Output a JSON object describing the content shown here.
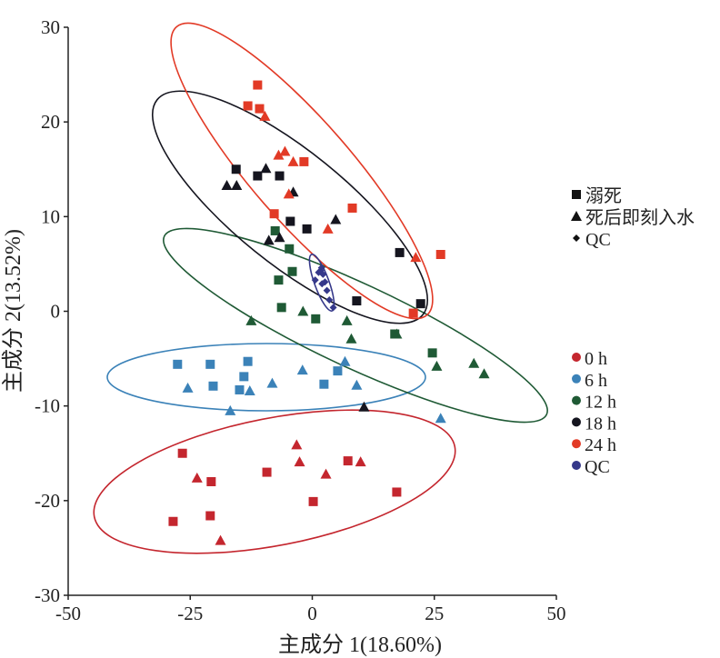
{
  "chart_data": {
    "type": "scatter",
    "title": "",
    "xlabel": "主成分 1(18.60%)",
    "ylabel": "主成分 2(13.52%)",
    "xlim": [
      -50,
      50
    ],
    "ylim": [
      -30,
      30
    ],
    "xticks": [
      "-50",
      "-25",
      "0",
      "25",
      "50"
    ],
    "yticks": [
      "30",
      "20",
      "10",
      "0",
      "-10",
      "-20",
      "-30"
    ],
    "grid": false,
    "shape_legend": [
      {
        "label": "溺死",
        "marker": "square"
      },
      {
        "label": "死后即刻入水",
        "marker": "triangle"
      },
      {
        "label": "QC",
        "marker": "diamond"
      }
    ],
    "color_legend": [
      {
        "label": "0 h",
        "color": "#c4262e"
      },
      {
        "label": "6 h",
        "color": "#3b82b8"
      },
      {
        "label": "12 h",
        "color": "#1f5a35"
      },
      {
        "label": "18 h",
        "color": "#15151f"
      },
      {
        "label": "24 h",
        "color": "#e23a26"
      },
      {
        "label": "QC",
        "color": "#35388a"
      }
    ],
    "series": [
      {
        "name": "0 h",
        "color": "#c4262e",
        "square": [
          [
            -26.6,
            -15.0
          ],
          [
            -20.7,
            -18.0
          ],
          [
            -20.9,
            -21.6
          ],
          [
            -28.5,
            -22.2
          ],
          [
            -9.3,
            -17.0
          ],
          [
            0.2,
            -20.1
          ],
          [
            7.3,
            -15.8
          ],
          [
            17.3,
            -19.1
          ]
        ],
        "triangle": [
          [
            -23.6,
            -17.6
          ],
          [
            -18.8,
            -24.2
          ],
          [
            -3.2,
            -14.1
          ],
          [
            -2.6,
            -15.9
          ],
          [
            2.8,
            -17.2
          ],
          [
            9.9,
            -15.9
          ]
        ]
      },
      {
        "name": "6 h",
        "color": "#3b82b8",
        "square": [
          [
            -27.6,
            -5.6
          ],
          [
            -20.9,
            -5.6
          ],
          [
            -20.3,
            -7.9
          ],
          [
            -13.2,
            -5.3
          ],
          [
            -14.0,
            -6.9
          ],
          [
            -14.9,
            -8.3
          ],
          [
            2.4,
            -7.7
          ],
          [
            5.2,
            -6.3
          ]
        ],
        "triangle": [
          [
            -25.5,
            -8.1
          ],
          [
            -12.8,
            -8.4
          ],
          [
            -16.8,
            -10.5
          ],
          [
            -8.2,
            -7.6
          ],
          [
            -2.0,
            -6.2
          ],
          [
            6.7,
            -5.3
          ],
          [
            9.1,
            -7.8
          ],
          [
            26.3,
            -11.3
          ]
        ]
      },
      {
        "name": "12 h",
        "color": "#1f5a35",
        "square": [
          [
            -7.6,
            8.5
          ],
          [
            -4.7,
            6.6
          ],
          [
            -4.1,
            4.2
          ],
          [
            -6.9,
            3.3
          ],
          [
            -6.3,
            0.4
          ],
          [
            0.7,
            -0.8
          ],
          [
            16.9,
            -2.4
          ],
          [
            24.6,
            -4.4
          ]
        ],
        "triangle": [
          [
            -12.5,
            -1.0
          ],
          [
            -1.9,
            0.0
          ],
          [
            7.1,
            -1.0
          ],
          [
            8.0,
            -2.9
          ],
          [
            17.3,
            -2.4
          ],
          [
            25.5,
            -5.8
          ],
          [
            33.1,
            -5.5
          ],
          [
            35.2,
            -6.6
          ]
        ]
      },
      {
        "name": "18 h",
        "color": "#15151f",
        "square": [
          [
            -15.6,
            15.0
          ],
          [
            -11.2,
            14.3
          ],
          [
            -6.7,
            14.3
          ],
          [
            -4.5,
            9.5
          ],
          [
            -1.1,
            8.7
          ],
          [
            17.9,
            6.2
          ],
          [
            9.1,
            1.1
          ],
          [
            22.2,
            0.8
          ]
        ],
        "triangle": [
          [
            -17.5,
            13.3
          ],
          [
            -15.5,
            13.3
          ],
          [
            -9.5,
            15.1
          ],
          [
            -3.9,
            12.6
          ],
          [
            4.8,
            9.7
          ],
          [
            -8.9,
            7.5
          ],
          [
            -6.7,
            7.8
          ],
          [
            10.6,
            -10.1
          ]
        ]
      },
      {
        "name": "24 h",
        "color": "#e23a26",
        "square": [
          [
            -11.2,
            23.9
          ],
          [
            -13.2,
            21.7
          ],
          [
            -10.8,
            21.4
          ],
          [
            -1.7,
            15.8
          ],
          [
            -7.8,
            10.3
          ],
          [
            8.2,
            10.9
          ],
          [
            26.3,
            6.0
          ],
          [
            20.7,
            -0.2
          ]
        ],
        "triangle": [
          [
            -9.7,
            20.6
          ],
          [
            -6.9,
            16.5
          ],
          [
            -5.6,
            16.9
          ],
          [
            -3.9,
            15.8
          ],
          [
            -4.8,
            12.4
          ],
          [
            3.2,
            8.7
          ],
          [
            21.2,
            5.7
          ]
        ]
      },
      {
        "name": "QC",
        "color": "#35388a",
        "diamond": [
          [
            0.6,
            3.3
          ],
          [
            1.3,
            4.1
          ],
          [
            1.7,
            4.3
          ],
          [
            2.2,
            3.9
          ],
          [
            2.0,
            2.9
          ],
          [
            3.0,
            2.2
          ],
          [
            3.5,
            1.2
          ],
          [
            4.3,
            0.4
          ],
          [
            1.9,
            4.6
          ],
          [
            2.6,
            3.1
          ]
        ]
      }
    ]
  }
}
